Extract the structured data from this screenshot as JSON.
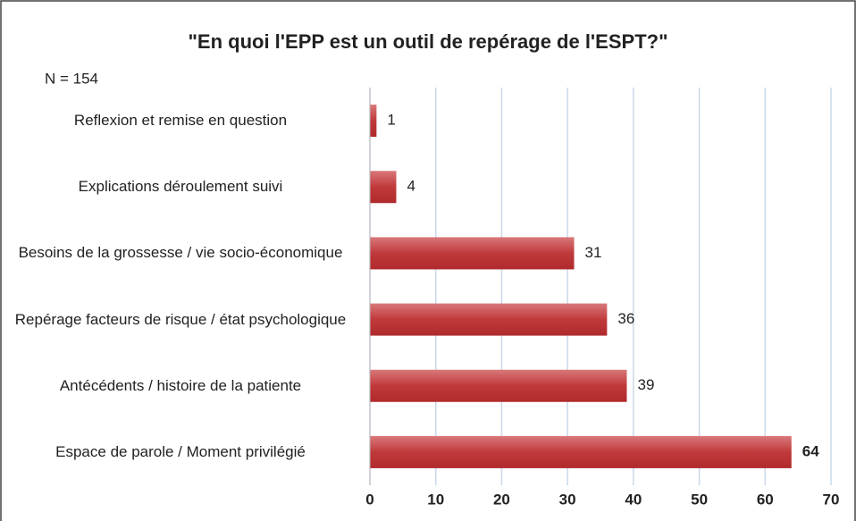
{
  "chart_data": {
    "type": "bar",
    "orientation": "horizontal",
    "title": "\"En quoi l'EPP est un outil de repérage de l'ESPT?\"",
    "annotation": "N = 154",
    "categories": [
      "Reflexion et remise en question",
      "Explications déroulement suivi",
      "Besoins de la grossesse / vie socio-économique",
      "Repérage facteurs de risque / état psychologique",
      "Antécédents / histoire de la patiente",
      "Espace de parole / Moment privilégié"
    ],
    "values": [
      1,
      4,
      31,
      36,
      39,
      64
    ],
    "color": "#c0393b",
    "xlim": [
      0,
      70
    ],
    "xticks": [
      0,
      10,
      20,
      30,
      40,
      50,
      60,
      70
    ],
    "grid": true
  }
}
